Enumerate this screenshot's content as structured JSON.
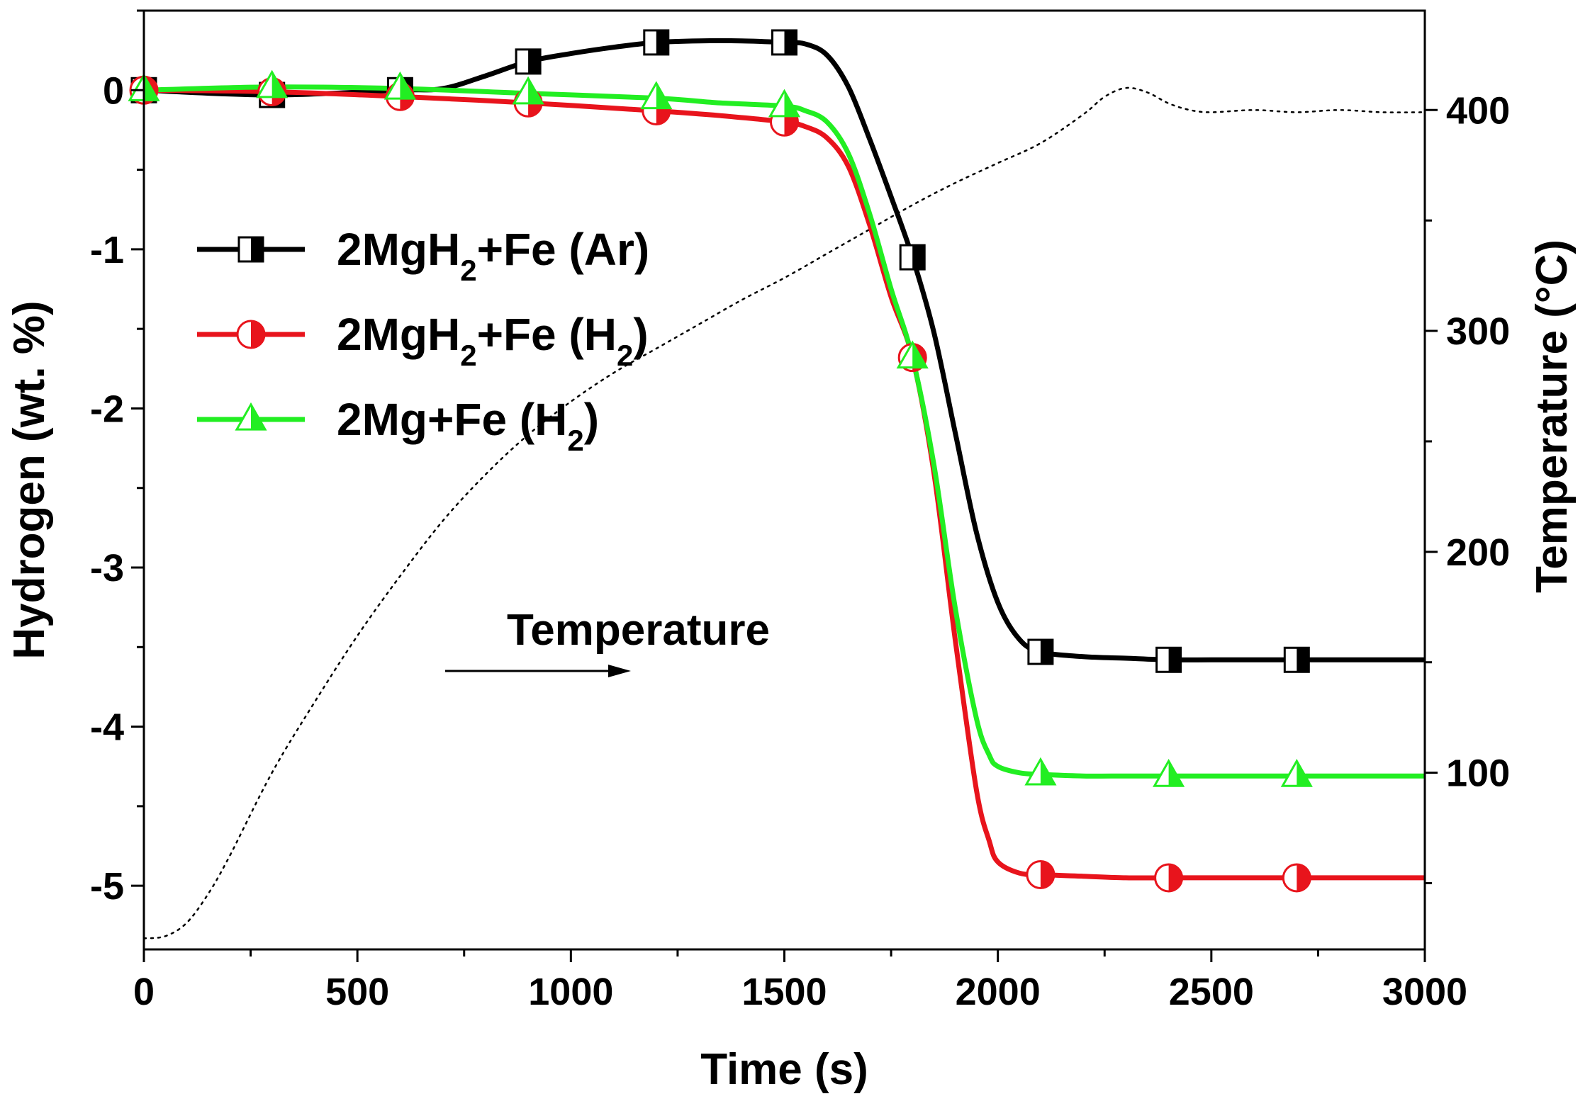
{
  "chart_data": {
    "type": "line",
    "x_axis": {
      "label": "Time (s)",
      "range": [
        0,
        3000
      ],
      "major_ticks": [
        0,
        500,
        1000,
        1500,
        2000,
        2500,
        3000
      ],
      "tick_labels": [
        "0",
        "500",
        "1000",
        "1500",
        "2000",
        "2500",
        "3000"
      ],
      "minor_step": 250
    },
    "y_axis_left": {
      "label": "Hydrogen (wt. %)",
      "range": [
        -5.4,
        0.5
      ],
      "major_ticks": [
        0,
        -1,
        -2,
        -3,
        -4,
        -5
      ],
      "tick_labels": [
        "0",
        "-1",
        "-2",
        "-3",
        "-4",
        "-5"
      ],
      "minor_step": 0.5
    },
    "y_axis_right": {
      "label": "Temperature (°C)",
      "range": [
        20,
        445
      ],
      "major_ticks": [
        100,
        200,
        300,
        400
      ],
      "tick_labels": [
        "100",
        "200",
        "300",
        "400"
      ],
      "minor_step": 50
    },
    "legend_position": "upper-left",
    "series": [
      {
        "name": "2MgH2+Fe (Ar)",
        "legend": {
          "main": "2MgH",
          "sub": "2",
          "rest": "+Fe (Ar)"
        },
        "color": "#000000",
        "marker": "half-filled-square",
        "axis": "left",
        "x": [
          0,
          300,
          600,
          700,
          800,
          900,
          1000,
          1100,
          1200,
          1300,
          1400,
          1500,
          1550,
          1600,
          1650,
          1700,
          1750,
          1800,
          1850,
          1900,
          1950,
          2000,
          2050,
          2100,
          2200,
          2300,
          2400,
          2500,
          2600,
          2700,
          2800,
          2900,
          3000
        ],
        "y": [
          0.0,
          -0.03,
          0.0,
          0.01,
          0.09,
          0.18,
          0.23,
          0.27,
          0.3,
          0.31,
          0.31,
          0.3,
          0.29,
          0.22,
          0.02,
          -0.31,
          -0.67,
          -1.05,
          -1.52,
          -2.15,
          -2.78,
          -3.22,
          -3.45,
          -3.53,
          -3.56,
          -3.57,
          -3.58,
          -3.58,
          -3.58,
          -3.58,
          -3.58,
          -3.58,
          -3.58
        ],
        "marker_x": [
          0,
          300,
          600,
          900,
          1200,
          1500,
          1800,
          2100,
          2400,
          2700
        ],
        "marker_y": [
          0.0,
          -0.03,
          0.0,
          0.18,
          0.3,
          0.3,
          -1.05,
          -3.53,
          -3.58,
          -3.58
        ]
      },
      {
        "name": "2MgH2+Fe (H2)",
        "legend": {
          "main": "2MgH",
          "sub": "2",
          "rest": "+Fe (H",
          "sub2": "2",
          "end": ")"
        },
        "color": "#e8141c",
        "marker": "half-filled-circle",
        "axis": "left",
        "x": [
          0,
          300,
          600,
          900,
          1200,
          1350,
          1500,
          1550,
          1600,
          1650,
          1700,
          1750,
          1800,
          1850,
          1900,
          1950,
          1980,
          2000,
          2050,
          2100,
          2200,
          2300,
          2400,
          2500,
          2600,
          2700,
          2800,
          2900,
          3000
        ],
        "y": [
          0.0,
          -0.01,
          -0.04,
          -0.08,
          -0.13,
          -0.16,
          -0.2,
          -0.23,
          -0.3,
          -0.48,
          -0.85,
          -1.3,
          -1.68,
          -2.4,
          -3.45,
          -4.4,
          -4.72,
          -4.85,
          -4.92,
          -4.93,
          -4.94,
          -4.95,
          -4.95,
          -4.95,
          -4.95,
          -4.95,
          -4.95,
          -4.95,
          -4.95
        ],
        "marker_x": [
          0,
          300,
          600,
          900,
          1200,
          1500,
          1800,
          2100,
          2400,
          2700
        ],
        "marker_y": [
          0.0,
          -0.01,
          -0.04,
          -0.08,
          -0.13,
          -0.2,
          -1.68,
          -4.93,
          -4.95,
          -4.95
        ]
      },
      {
        "name": "2Mg+Fe (H2)",
        "legend": {
          "main": "2Mg+Fe (H",
          "sub": "2",
          "rest": ")"
        },
        "color": "#22ee22",
        "marker": "half-filled-triangle",
        "axis": "left",
        "x": [
          0,
          300,
          600,
          900,
          1200,
          1350,
          1500,
          1550,
          1600,
          1650,
          1700,
          1750,
          1800,
          1850,
          1900,
          1950,
          1980,
          2000,
          2050,
          2100,
          2200,
          2300,
          2400,
          2500,
          2600,
          2700,
          2800,
          2900,
          3000
        ],
        "y": [
          0.0,
          0.02,
          0.01,
          -0.02,
          -0.05,
          -0.08,
          -0.1,
          -0.13,
          -0.2,
          -0.4,
          -0.78,
          -1.25,
          -1.68,
          -2.35,
          -3.25,
          -3.95,
          -4.18,
          -4.25,
          -4.29,
          -4.3,
          -4.31,
          -4.31,
          -4.31,
          -4.31,
          -4.31,
          -4.31,
          -4.31,
          -4.31,
          -4.31
        ],
        "marker_x": [
          0,
          300,
          600,
          900,
          1200,
          1500,
          1800,
          2100,
          2400,
          2700
        ],
        "marker_y": [
          0.0,
          0.02,
          0.01,
          -0.02,
          -0.05,
          -0.1,
          -1.68,
          -4.3,
          -4.31,
          -4.31
        ]
      },
      {
        "name": "Temperature",
        "color": "#000000",
        "style": "dotted",
        "axis": "right",
        "x": [
          0,
          50,
          100,
          150,
          200,
          300,
          400,
          500,
          600,
          700,
          800,
          900,
          1000,
          1100,
          1200,
          1300,
          1400,
          1500,
          1600,
          1700,
          1800,
          1900,
          2000,
          2100,
          2200,
          2250,
          2300,
          2350,
          2400,
          2450,
          2500,
          2600,
          2700,
          2800,
          2900,
          3000
        ],
        "y": [
          25,
          26,
          32,
          45,
          62,
          100,
          132,
          162,
          189,
          214,
          235,
          253,
          268,
          281,
          292,
          303,
          314,
          324,
          335,
          346,
          357,
          367,
          376,
          385,
          398,
          406,
          410,
          408,
          403,
          400,
          399,
          400,
          399,
          400,
          399,
          399
        ]
      }
    ],
    "annotation": {
      "text": "Temperature",
      "arrow": "right"
    }
  }
}
